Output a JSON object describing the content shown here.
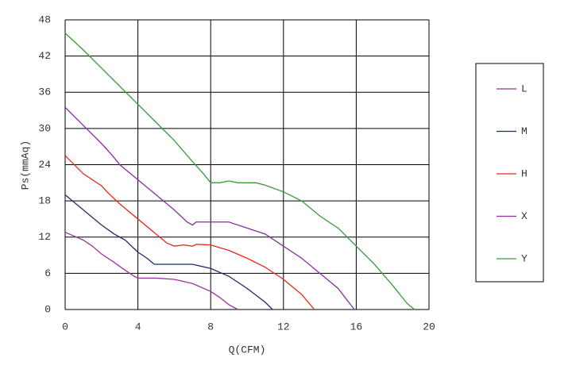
{
  "chart_data": {
    "type": "line",
    "x_label": "Q(CFM)",
    "y_label": "Ps(mmAq)",
    "xlim": [
      0,
      20
    ],
    "xticks": [
      0,
      4,
      8,
      12,
      16,
      20
    ],
    "ylim": [
      0,
      48
    ],
    "yticks": [
      0,
      6,
      12,
      18,
      24,
      30,
      36,
      42,
      48
    ],
    "grid": true,
    "legend": "right",
    "series": [
      {
        "name": "L",
        "color": "#993399",
        "x": [
          0,
          1,
          1.5,
          2,
          2.7,
          3.3,
          3.8,
          4,
          5,
          6,
          7,
          8,
          8.5,
          9,
          9.5
        ],
        "values": [
          12.8,
          11.5,
          10.5,
          9.2,
          7.8,
          6.5,
          5.5,
          5.2,
          5.2,
          5,
          4.3,
          3,
          2,
          0.8,
          0
        ]
      },
      {
        "name": "M",
        "color": "#1f2a6b",
        "x": [
          0,
          1,
          2,
          2.7,
          3.3,
          4,
          4.5,
          4.9,
          5,
          7,
          8,
          9,
          10,
          11,
          11.4
        ],
        "values": [
          19,
          16.5,
          14,
          12.5,
          11.5,
          9.5,
          8.5,
          7.5,
          7.5,
          7.5,
          6.8,
          5.5,
          3.5,
          1.2,
          0
        ]
      },
      {
        "name": "H",
        "color": "#e8261a",
        "x": [
          0,
          1,
          2,
          2.3,
          3,
          4,
          5,
          5.6,
          6,
          6.5,
          7,
          7.2,
          8,
          9,
          10,
          11,
          12,
          13,
          13.7
        ],
        "values": [
          25.5,
          22.5,
          20.5,
          19.5,
          17.5,
          15,
          12.5,
          11,
          10.5,
          10.7,
          10.5,
          10.8,
          10.7,
          9.8,
          8.5,
          7,
          5,
          2.5,
          0
        ]
      },
      {
        "name": "X",
        "color": "#8a2ea0",
        "x": [
          0,
          1,
          2,
          2.6,
          3,
          4,
          5,
          6,
          6.7,
          7,
          7.2,
          9,
          10,
          11,
          12,
          13,
          14,
          15,
          15.9
        ],
        "values": [
          33.5,
          30.5,
          27.5,
          25.5,
          24,
          21.5,
          19,
          16.5,
          14.5,
          14,
          14.5,
          14.5,
          13.5,
          12.5,
          10.5,
          8.5,
          6,
          3.5,
          0
        ]
      },
      {
        "name": "Y",
        "color": "#3a9a3a",
        "x": [
          0,
          1,
          2,
          3,
          4,
          5,
          6,
          7,
          7.6,
          8,
          8.5,
          9,
          9.5,
          10.5,
          11,
          12,
          13,
          14,
          15,
          16,
          17,
          18,
          18.8,
          19.2
        ],
        "values": [
          45.8,
          43,
          40,
          37,
          34,
          31,
          28,
          24.5,
          22.5,
          21,
          21,
          21.3,
          21,
          21,
          20.6,
          19.5,
          18,
          15.5,
          13.5,
          10.5,
          7.5,
          4,
          1,
          0
        ]
      }
    ]
  }
}
